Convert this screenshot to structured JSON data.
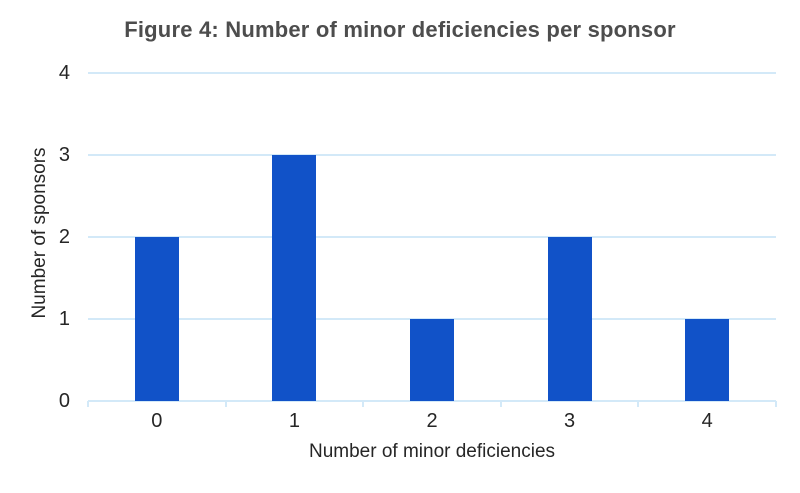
{
  "chart_data": {
    "type": "bar",
    "title": "Figure 4: Number of minor deficiencies per sponsor",
    "categories": [
      "0",
      "1",
      "2",
      "3",
      "4"
    ],
    "values": [
      2,
      3,
      1,
      2,
      1
    ],
    "xlabel": "Number of minor deficiencies",
    "ylabel": "Number of sponsors",
    "yticks": [
      0,
      1,
      2,
      3,
      4
    ],
    "ylim": [
      0,
      4
    ],
    "grid": "horizontal-only",
    "legend_position": "none"
  },
  "theme": {
    "bar_color": "#1152c8",
    "gridline_color": "#d3e9f8",
    "title_color": "#4d4d4d",
    "axis_text_color": "#262626",
    "background_color": "#ffffff"
  }
}
